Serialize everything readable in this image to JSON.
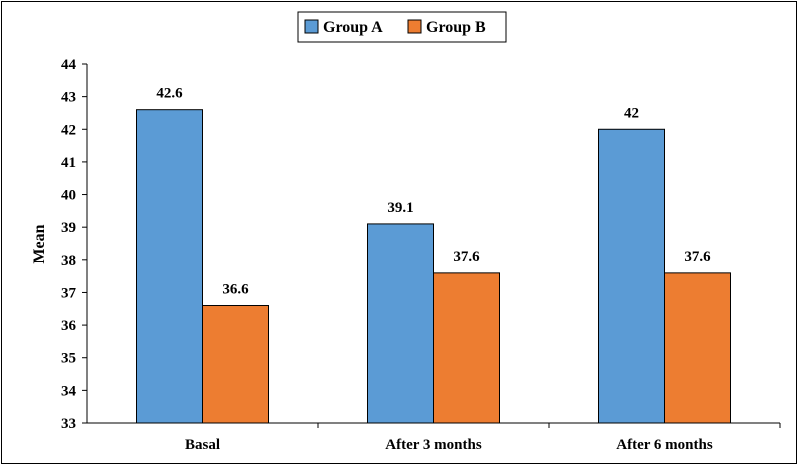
{
  "chart_data": {
    "type": "bar",
    "categories": [
      "Basal",
      "After 3 months",
      "After 6 months"
    ],
    "series": [
      {
        "name": "Group A",
        "values": [
          42.6,
          39.1,
          42
        ],
        "labels": [
          "42.6",
          "39.1",
          "42"
        ],
        "color": "#5b9bd5"
      },
      {
        "name": "Group B",
        "values": [
          36.6,
          37.6,
          37.6
        ],
        "labels": [
          "36.6",
          "37.6",
          "37.6"
        ],
        "color": "#ed7d31"
      }
    ],
    "xlabel": "",
    "ylabel": "Mean",
    "ylim": [
      33,
      44
    ],
    "yticks": [
      "33",
      "34",
      "35",
      "36",
      "37",
      "38",
      "39",
      "40",
      "41",
      "42",
      "43",
      "44"
    ],
    "grid": false,
    "legend": "top-center"
  }
}
